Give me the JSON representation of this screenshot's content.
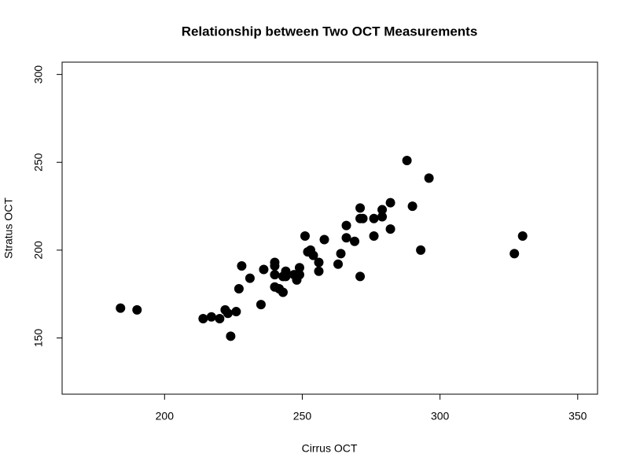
{
  "chart_data": {
    "type": "scatter",
    "title": "Relationship between Two OCT Measurements",
    "x_label": "Cirrus OCT",
    "y_label": "Stratus OCT",
    "color": "#000000",
    "x": [
      184,
      190,
      214,
      217,
      220,
      222,
      223,
      224,
      226,
      227,
      228,
      231,
      235,
      236,
      240,
      240,
      240,
      240,
      241.6,
      243,
      243,
      244,
      244,
      247,
      248,
      249,
      249,
      251,
      252,
      253,
      254,
      256,
      256,
      258,
      263,
      264,
      266,
      266,
      269,
      271,
      271,
      271,
      272,
      276,
      276,
      279,
      279,
      282,
      282,
      288,
      290,
      296,
      293,
      327,
      330
    ],
    "values": [
      167,
      166,
      161,
      162,
      161,
      166,
      164,
      151,
      165,
      178,
      191,
      184,
      169,
      189,
      193,
      191,
      186,
      179,
      178,
      176,
      185,
      188,
      185,
      186,
      183,
      186,
      190,
      208,
      199,
      200,
      197,
      193,
      188,
      206,
      192,
      198,
      214,
      207,
      205,
      185,
      224,
      218,
      218,
      218,
      208,
      223,
      219,
      227,
      212,
      251,
      225,
      241,
      200,
      198,
      208
    ],
    "xlim": [
      162.8,
      357.2
    ],
    "ylim": [
      118,
      307
    ],
    "xticks": [
      200,
      250,
      300,
      350
    ],
    "yticks": [
      150,
      200,
      250,
      300
    ]
  }
}
